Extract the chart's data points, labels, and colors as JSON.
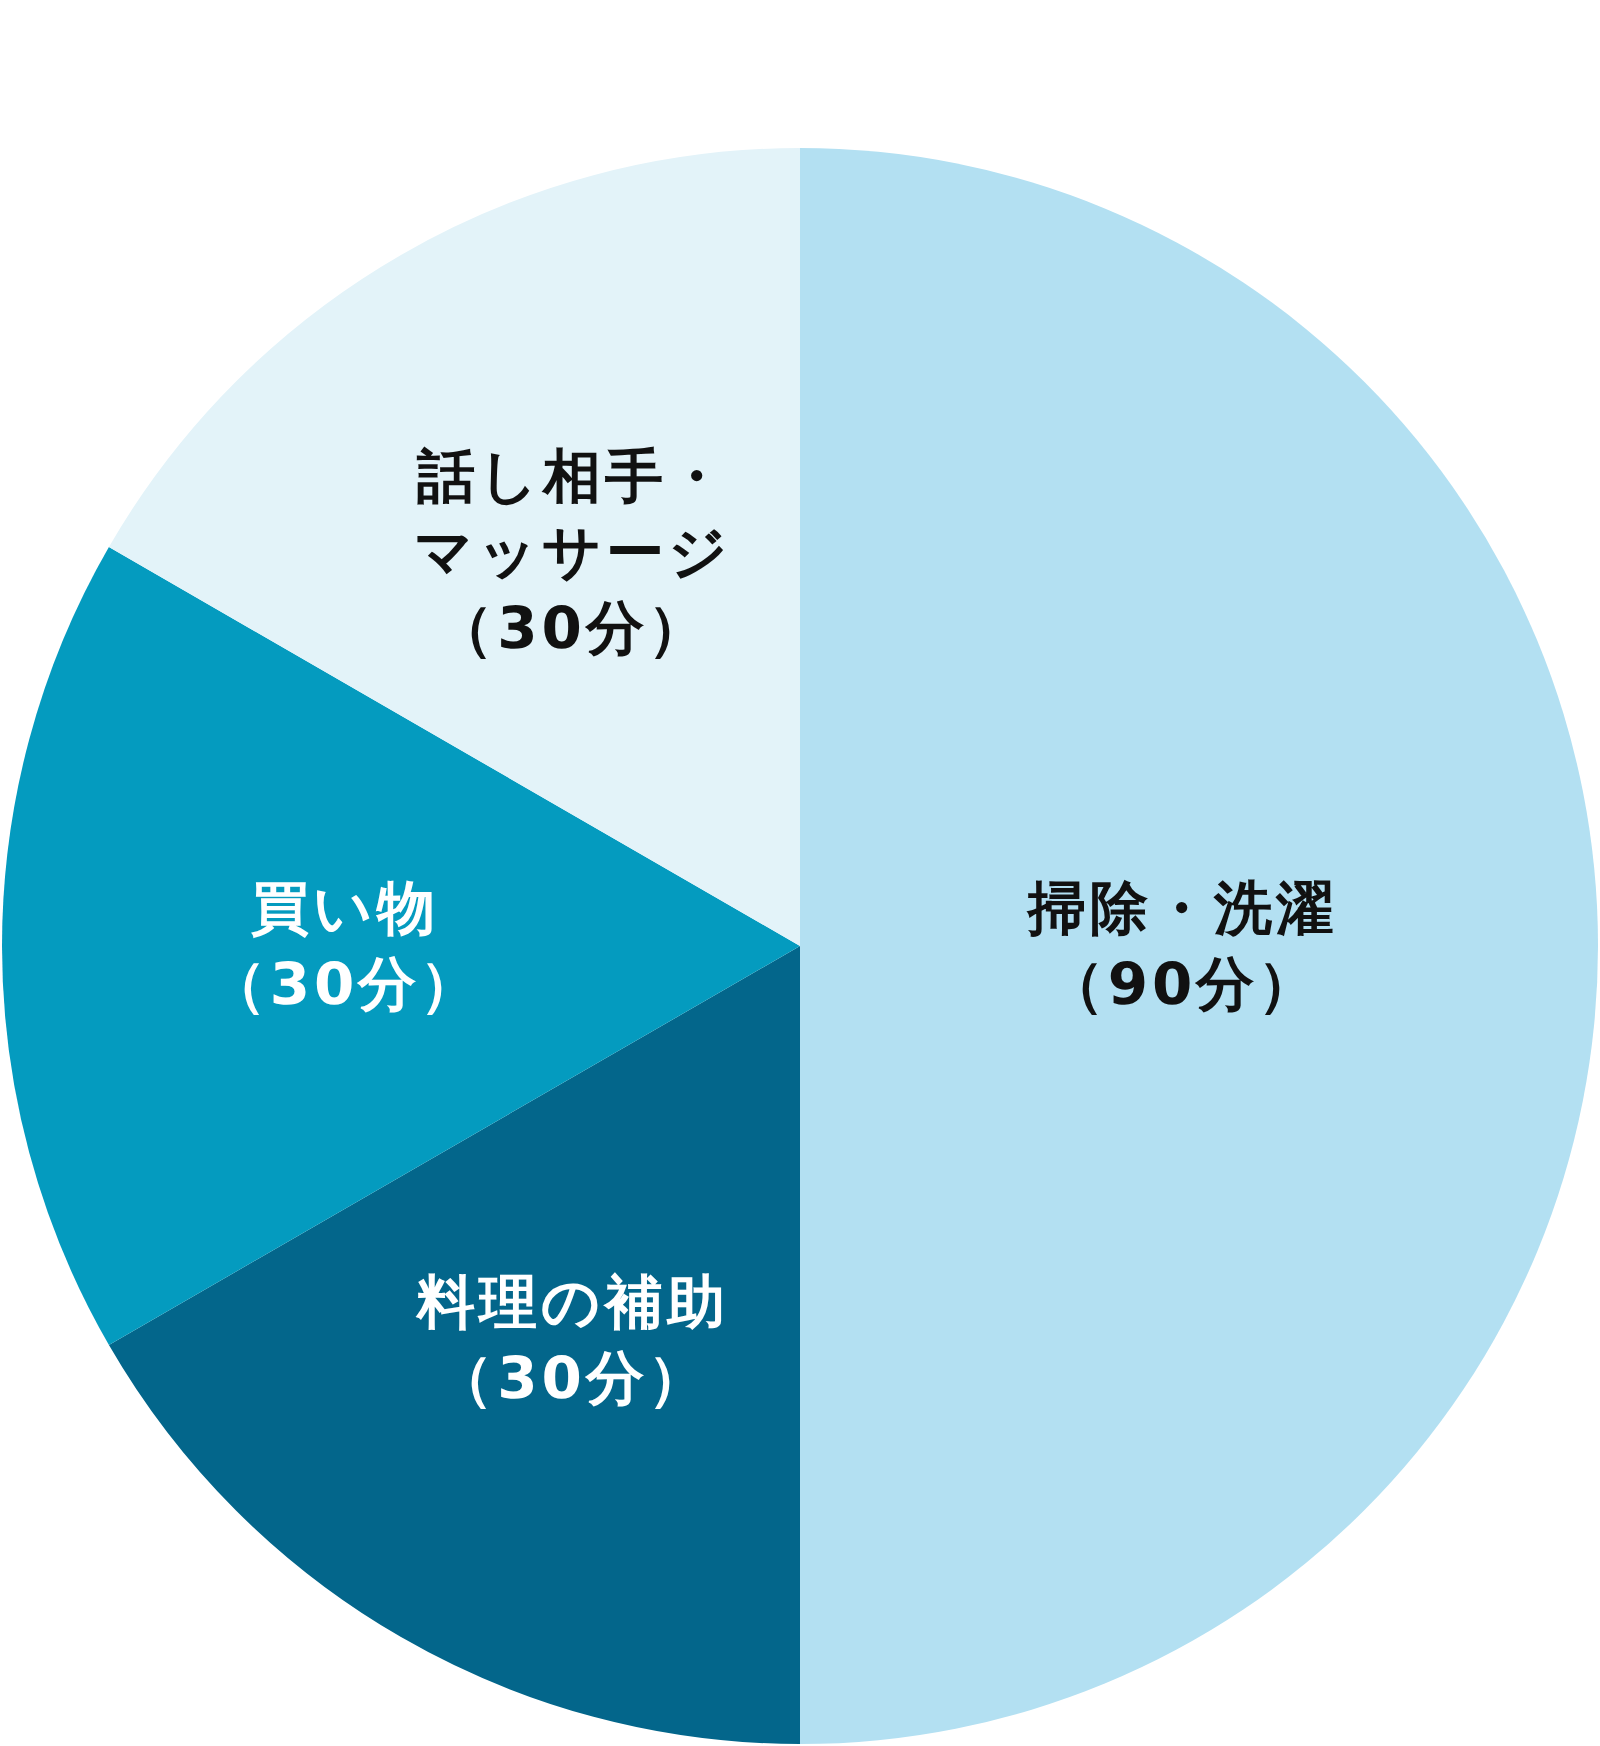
{
  "chart_data": {
    "type": "pie",
    "categories": [
      "掃除・洗濯",
      "料理の補助",
      "買い物",
      "話し相手・マッサージ"
    ],
    "values": [
      90,
      30,
      30,
      30
    ],
    "value_labels": [
      "（90分）",
      "（30分）",
      "（30分）",
      "（30分）"
    ],
    "colors": [
      "#b3e0f2",
      "#03668b",
      "#049bbf",
      "#e3f3f9"
    ]
  }
}
